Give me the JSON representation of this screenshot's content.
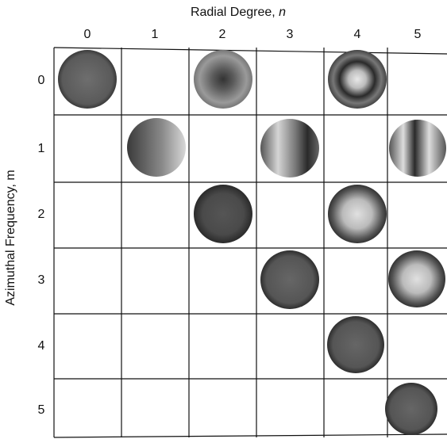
{
  "x_axis": {
    "title": "Radial Degree,",
    "variable": "n",
    "labels": [
      "0",
      "1",
      "2",
      "3",
      "4",
      "5"
    ]
  },
  "y_axis": {
    "title": "Azimuthal Frequency, m",
    "labels": [
      "0",
      "1",
      "2",
      "3",
      "4",
      "5"
    ]
  }
}
